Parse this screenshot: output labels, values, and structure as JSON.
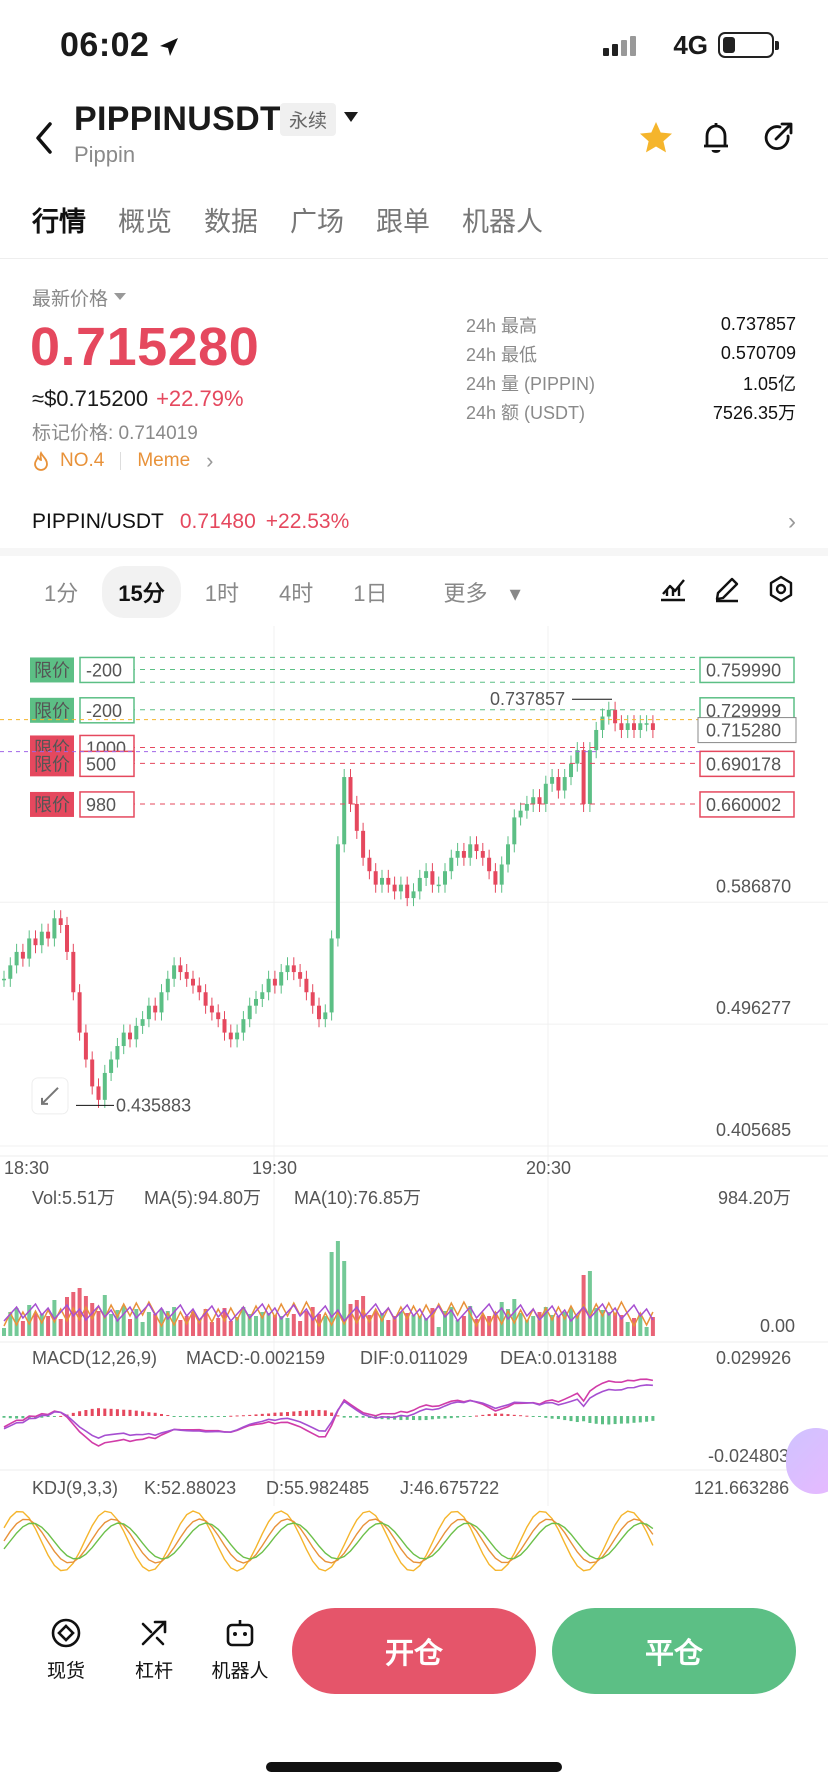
{
  "status_bar": {
    "time": "06:02",
    "network": "4G"
  },
  "header": {
    "symbol": "PIPPINUSDT",
    "contract_tag": "永续",
    "name": "Pippin"
  },
  "tabs": [
    "行情",
    "概览",
    "数据",
    "广场",
    "跟单",
    "机器人"
  ],
  "price": {
    "latest_label": "最新价格",
    "value": "0.715280",
    "usd": "≈$0.715200",
    "change": "+22.79%",
    "mark_price": "标记价格: 0.714019",
    "rank": "NO.4",
    "category": "Meme"
  },
  "stats": [
    {
      "k": "24h  最高",
      "v": "0.737857"
    },
    {
      "k": "24h  最低",
      "v": "0.570709"
    },
    {
      "k": "24h  量 (PIPPIN)",
      "v": "1.05亿"
    },
    {
      "k": "24h  额 (USDT)",
      "v": "7526.35万"
    }
  ],
  "spot": {
    "pair": "PIPPIN/USDT",
    "price": "0.71480",
    "change": "+22.53%"
  },
  "intervals": [
    "1分",
    "15分",
    "1时",
    "4时",
    "1日",
    "更多"
  ],
  "active_interval": "15分",
  "orders": [
    {
      "side": "限价",
      "qty": "-200",
      "price": "0.759990"
    },
    {
      "side": "限价",
      "qty": "-200",
      "price": "0.729999"
    },
    {
      "side": "限价",
      "qty": "1000",
      "price": ""
    },
    {
      "side": "限价",
      "qty": "500",
      "price": "0.690178"
    },
    {
      "side": "限价",
      "qty": "980",
      "price": "0.660002"
    }
  ],
  "current_price_tag": "0.715280",
  "chart_data": {
    "type": "candlestick",
    "x_ticks": [
      "18:30",
      "19:30",
      "20:30"
    ],
    "y_ticks": [
      "0.586870",
      "0.496277",
      "0.405685"
    ],
    "high_label": "0.737857",
    "low_label": "0.435883",
    "ylim": [
      0.405685,
      0.77
    ],
    "close_series": [
      0.53,
      0.54,
      0.55,
      0.545,
      0.56,
      0.555,
      0.565,
      0.56,
      0.575,
      0.57,
      0.55,
      0.52,
      0.49,
      0.47,
      0.45,
      0.44,
      0.46,
      0.47,
      0.48,
      0.49,
      0.485,
      0.495,
      0.5,
      0.51,
      0.505,
      0.52,
      0.53,
      0.54,
      0.535,
      0.53,
      0.525,
      0.52,
      0.51,
      0.505,
      0.5,
      0.49,
      0.485,
      0.49,
      0.5,
      0.51,
      0.515,
      0.52,
      0.53,
      0.525,
      0.535,
      0.54,
      0.535,
      0.53,
      0.52,
      0.51,
      0.5,
      0.505,
      0.56,
      0.63,
      0.68,
      0.66,
      0.64,
      0.62,
      0.61,
      0.6,
      0.605,
      0.6,
      0.595,
      0.6,
      0.59,
      0.595,
      0.605,
      0.61,
      0.6,
      0.6,
      0.61,
      0.62,
      0.625,
      0.62,
      0.63,
      0.625,
      0.62,
      0.61,
      0.6,
      0.615,
      0.63,
      0.65,
      0.655,
      0.66,
      0.665,
      0.66,
      0.675,
      0.68,
      0.67,
      0.68,
      0.69,
      0.7,
      0.66,
      0.7,
      0.715,
      0.725,
      0.73,
      0.72,
      0.715,
      0.72,
      0.715,
      0.72,
      0.72,
      0.715
    ],
    "volume": {
      "label": "Vol:5.51万",
      "ma5": "MA(5):94.80万",
      "ma10": "MA(10):76.85万",
      "max": "984.20万",
      "min": "0.00"
    },
    "macd": {
      "label": "MACD(12,26,9)",
      "macd": "MACD:-0.002159",
      "dif": "DIF:0.011029",
      "dea": "DEA:0.013188",
      "max": "0.029926",
      "min": "-0.024803"
    },
    "kdj": {
      "label": "KDJ(9,3,3)",
      "k": "K:52.88023",
      "d": "D:55.982485",
      "j": "J:46.675722",
      "max": "121.663286"
    }
  },
  "bottom": {
    "spot": "现货",
    "leverage": "杠杆",
    "bot": "机器人",
    "open": "开仓",
    "close": "平仓"
  },
  "colors": {
    "up": "#5cbf85",
    "down": "#e5485e",
    "accent": "#f5b52c"
  }
}
